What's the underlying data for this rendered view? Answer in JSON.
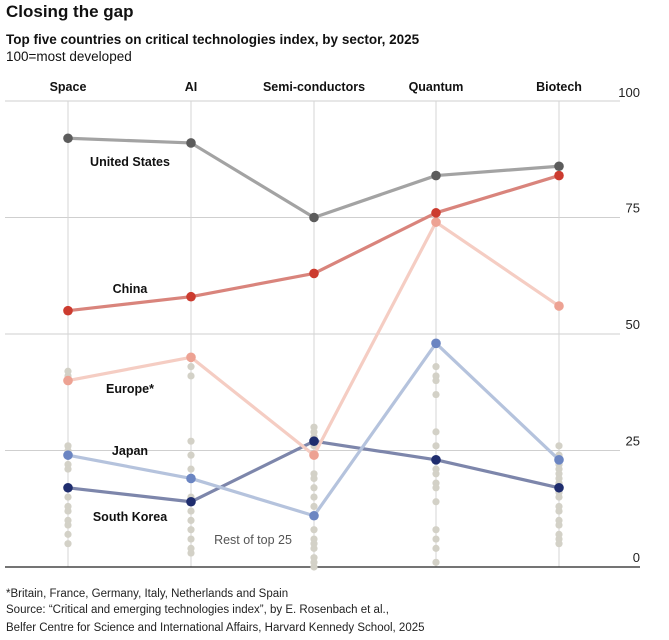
{
  "title": "Closing the gap",
  "subtitle": "Top five countries on critical technologies index, by sector, 2025",
  "note": "100=most developed",
  "footnotes": [
    "*Britain, France, Germany, Italy, Netherlands and Spain",
    "Source: “Critical and emerging technologies index”, by E. Rosenbach et al.,",
    "Belfer Centre for Science and International Affairs, Harvard Kennedy School, 2025"
  ],
  "chart_data": {
    "type": "line",
    "categories": [
      "Space",
      "AI",
      "Semi-conductors",
      "Quantum",
      "Biotech"
    ],
    "ylim": [
      0,
      100
    ],
    "yticks": [
      0,
      25,
      50,
      75,
      100
    ],
    "grid": true,
    "series": [
      {
        "name": "United States",
        "color": "#5c5c5c",
        "line_color": "#a3a3a3",
        "values": [
          92,
          91,
          75,
          84,
          86
        ]
      },
      {
        "name": "China",
        "color": "#cc3b2f",
        "line_color": "#d9847c",
        "values": [
          55,
          58,
          63,
          76,
          84
        ]
      },
      {
        "name": "Europe*",
        "color": "#eda293",
        "line_color": "#f5cdc3",
        "values": [
          40,
          45,
          24,
          74,
          56
        ]
      },
      {
        "name": "Japan",
        "color": "#6b85c2",
        "line_color": "#b5c3dd",
        "values": [
          24,
          19,
          11,
          48,
          23
        ]
      },
      {
        "name": "South Korea",
        "color": "#1f2d6e",
        "line_color": "#7d86ab",
        "values": [
          17,
          14,
          27,
          23,
          17
        ]
      }
    ],
    "rest": {
      "label": "Rest of top 25",
      "color": "#d3d1c7",
      "values": [
        [
          42,
          41,
          26,
          25,
          22,
          21,
          17,
          15,
          13,
          12,
          10,
          9,
          7,
          5
        ],
        [
          43,
          41,
          27,
          24,
          21,
          19,
          15,
          12,
          10,
          8,
          6,
          4,
          3
        ],
        [
          30,
          29,
          28,
          26,
          20,
          19,
          17,
          15,
          13,
          11,
          8,
          6,
          5,
          4,
          2,
          1,
          0
        ],
        [
          43,
          41,
          40,
          37,
          29,
          26,
          21,
          20,
          18,
          17,
          14,
          8,
          6,
          4,
          1
        ],
        [
          26,
          24,
          22,
          21,
          20,
          19,
          18,
          16,
          15,
          13,
          12,
          10,
          9,
          7,
          6,
          5
        ]
      ]
    }
  }
}
